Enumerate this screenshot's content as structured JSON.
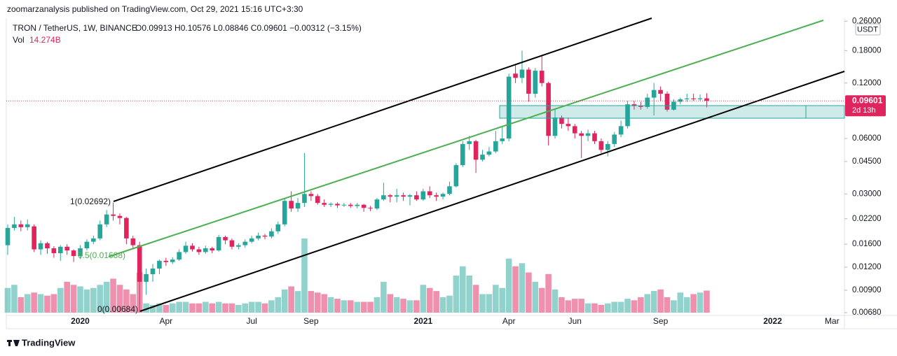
{
  "header": {
    "publisher": "zoomarzanalysis published on TradingView.com, Oct 29, 2021 15:16 UTC+3:30"
  },
  "footer": {
    "logo": "TradingView"
  },
  "chart_data": {
    "type": "candlestick",
    "title": "TRON / TetherUS, 1W, BINANCE",
    "ohlc_text": "O0.09913 H0.10576 L0.08846 C0.09601 −0.00312 (−3.15%)",
    "log_scale": true,
    "up_color": "#26a69a",
    "down_color": "#e0245e",
    "ylim": [
      0.0068,
      0.27
    ],
    "yticks": [
      {
        "value": 0.26,
        "label": "0.26000"
      },
      {
        "value": 0.18,
        "label": "0.18000"
      },
      {
        "value": 0.12,
        "label": "0.12000"
      },
      {
        "value": 0.06,
        "label": "0.06000"
      },
      {
        "value": 0.045,
        "label": "0.04500"
      },
      {
        "value": 0.03,
        "label": "0.03000"
      },
      {
        "value": 0.022,
        "label": "0.02200"
      },
      {
        "value": 0.016,
        "label": "0.01600"
      },
      {
        "value": 0.012,
        "label": "0.01200"
      },
      {
        "value": 0.009,
        "label": "0.00900"
      },
      {
        "value": 0.0068,
        "label": "0.00680"
      }
    ],
    "currency": "USDT",
    "price_label": "0.09601",
    "countdown": "2d 13h",
    "annotations": [
      "1(0.02692)",
      "0.5(0.01688)",
      "0(0.00684)"
    ],
    "categories": [
      null,
      null,
      null,
      null,
      null,
      null,
      null,
      null,
      null,
      null,
      null,
      "2020",
      null,
      null,
      null,
      null,
      null,
      null,
      null,
      null,
      null,
      null,
      null,
      null,
      "Apr",
      null,
      null,
      null,
      null,
      null,
      null,
      null,
      null,
      null,
      null,
      null,
      null,
      "Jul",
      null,
      null,
      null,
      null,
      null,
      null,
      null,
      null,
      "Sep",
      null,
      null,
      null,
      null,
      null,
      null,
      null,
      null,
      null,
      null,
      null,
      null,
      null,
      null,
      null,
      null,
      "2021",
      null,
      null,
      null,
      null,
      null,
      null,
      null,
      null,
      null,
      null,
      null,
      null,
      "Apr",
      null,
      null,
      null,
      null,
      null,
      null,
      null,
      null,
      null,
      "Jun",
      null,
      null,
      null,
      null,
      null,
      null,
      null,
      null,
      null,
      null,
      null,
      null,
      "Sep",
      null,
      null,
      null,
      null,
      null,
      null,
      null,
      null,
      null,
      null,
      null,
      null,
      null,
      null,
      null,
      null,
      "2022",
      null,
      null,
      null,
      null,
      null,
      null,
      null,
      null,
      "Mar"
    ],
    "open": [
      0.0158,
      0.0196,
      0.0205,
      0.0198,
      0.02,
      0.015,
      0.0162,
      0.0152,
      0.0143,
      0.0155,
      0.0148,
      0.0138,
      0.0152,
      0.0165,
      0.0172,
      0.0205,
      0.0232,
      0.0228,
      0.0222,
      0.0172,
      0.0158,
      0.01,
      0.011,
      0.0118,
      0.013,
      0.0128,
      0.0132,
      0.0145,
      0.0157,
      0.015,
      0.0145,
      0.0152,
      0.0148,
      0.0175,
      0.0168,
      0.0155,
      0.0158,
      0.0165,
      0.0172,
      0.0178,
      0.0176,
      0.0188,
      0.0205,
      0.0275,
      0.025,
      0.0268,
      0.03,
      0.0292,
      0.0268,
      0.0262,
      0.0265,
      0.026,
      0.0262,
      0.0258,
      0.0262,
      0.0252,
      0.025,
      0.028,
      0.0295,
      0.029,
      0.0295,
      0.029,
      0.0295,
      0.028,
      0.031,
      0.0295,
      0.029,
      0.03,
      0.033,
      0.043,
      0.056,
      0.058,
      0.046,
      0.049,
      0.051,
      0.058,
      0.06,
      0.135,
      0.128,
      0.142,
      0.105,
      0.14,
      0.12,
      0.062,
      0.078,
      0.072,
      0.07,
      0.064,
      0.062,
      0.064,
      0.058,
      0.052,
      0.056,
      0.063,
      0.07,
      0.092,
      0.09,
      0.089,
      0.1,
      0.11,
      0.105,
      0.086,
      0.095,
      0.098,
      0.099,
      0.098,
      0.09913,
      null,
      null,
      null,
      null,
      null,
      null,
      null,
      null,
      null,
      null,
      null,
      null,
      null,
      null,
      null,
      null,
      null,
      null,
      null
    ],
    "high": [
      0.0205,
      0.0225,
      0.0215,
      0.0218,
      0.0205,
      0.0168,
      0.0165,
      0.0156,
      0.0158,
      0.016,
      0.015,
      0.0158,
      0.017,
      0.0178,
      0.0215,
      0.0245,
      0.02692,
      0.0235,
      0.0225,
      0.0178,
      0.0165,
      0.0118,
      0.0125,
      0.0132,
      0.0135,
      0.0136,
      0.015,
      0.0165,
      0.0162,
      0.0155,
      0.0157,
      0.0155,
      0.018,
      0.0178,
      0.0172,
      0.0162,
      0.017,
      0.0178,
      0.0185,
      0.0182,
      0.0195,
      0.0212,
      0.0285,
      0.031,
      0.0285,
      0.05,
      0.031,
      0.03,
      0.028,
      0.027,
      0.027,
      0.0268,
      0.0268,
      0.0268,
      0.0265,
      0.0258,
      0.0285,
      0.0345,
      0.03,
      0.032,
      0.0305,
      0.03,
      0.031,
      0.032,
      0.033,
      0.0305,
      0.0305,
      0.035,
      0.044,
      0.058,
      0.062,
      0.059,
      0.052,
      0.054,
      0.066,
      0.07,
      0.135,
      0.15,
      0.18,
      0.146,
      0.145,
      0.17,
      0.122,
      0.086,
      0.08,
      0.078,
      0.072,
      0.066,
      0.067,
      0.066,
      0.06,
      0.058,
      0.065,
      0.075,
      0.096,
      0.096,
      0.095,
      0.105,
      0.12,
      0.115,
      0.108,
      0.098,
      0.1,
      0.105,
      0.105,
      0.104,
      0.10576,
      null,
      null,
      null,
      null,
      null,
      null,
      null,
      null,
      null,
      null,
      null,
      null,
      null,
      null,
      null,
      null,
      null,
      null,
      null
    ],
    "low": [
      0.014,
      0.019,
      0.0188,
      0.019,
      0.0145,
      0.014,
      0.0142,
      0.0135,
      0.013,
      0.014,
      0.0128,
      0.0133,
      0.0148,
      0.016,
      0.0168,
      0.0198,
      0.0215,
      0.0205,
      0.016,
      0.015,
      0.00684,
      0.0085,
      0.01,
      0.011,
      0.0122,
      0.0125,
      0.013,
      0.0142,
      0.0146,
      0.014,
      0.0142,
      0.0143,
      0.0146,
      0.016,
      0.015,
      0.015,
      0.0153,
      0.0162,
      0.0168,
      0.017,
      0.0172,
      0.0182,
      0.02,
      0.024,
      0.024,
      0.0255,
      0.0275,
      0.0262,
      0.0255,
      0.0255,
      0.0252,
      0.0255,
      0.0252,
      0.025,
      0.024,
      0.0242,
      0.0245,
      0.0275,
      0.027,
      0.027,
      0.0275,
      0.026,
      0.0275,
      0.0275,
      0.0285,
      0.0275,
      0.028,
      0.0295,
      0.0325,
      0.042,
      0.052,
      0.039,
      0.045,
      0.048,
      0.05,
      0.056,
      0.058,
      0.12,
      0.12,
      0.095,
      0.1,
      0.115,
      0.055,
      0.06,
      0.068,
      0.066,
      0.06,
      0.047,
      0.058,
      0.056,
      0.05,
      0.048,
      0.054,
      0.061,
      0.068,
      0.086,
      0.086,
      0.087,
      0.08,
      0.096,
      0.084,
      0.085,
      0.092,
      0.095,
      0.096,
      0.096,
      0.08846,
      null,
      null,
      null,
      null,
      null,
      null,
      null,
      null,
      null,
      null,
      null,
      null,
      null,
      null,
      null,
      null,
      null,
      null,
      null
    ],
    "close": [
      0.0196,
      0.0205,
      0.0198,
      0.0205,
      0.015,
      0.0162,
      0.0152,
      0.0143,
      0.0155,
      0.0148,
      0.0138,
      0.0152,
      0.0165,
      0.0172,
      0.0205,
      0.0232,
      0.0228,
      0.0222,
      0.0172,
      0.0158,
      0.01,
      0.011,
      0.0118,
      0.013,
      0.0128,
      0.0132,
      0.0145,
      0.0157,
      0.015,
      0.0145,
      0.0152,
      0.0148,
      0.0175,
      0.0168,
      0.0155,
      0.0158,
      0.0165,
      0.0172,
      0.0178,
      0.0176,
      0.0188,
      0.0205,
      0.0275,
      0.025,
      0.0268,
      0.03,
      0.0292,
      0.0268,
      0.0262,
      0.0265,
      0.026,
      0.0262,
      0.0258,
      0.0262,
      0.0252,
      0.025,
      0.028,
      0.0295,
      0.029,
      0.0295,
      0.029,
      0.0295,
      0.028,
      0.031,
      0.0295,
      0.029,
      0.03,
      0.033,
      0.043,
      0.056,
      0.058,
      0.046,
      0.049,
      0.051,
      0.058,
      0.06,
      0.13,
      0.128,
      0.142,
      0.105,
      0.14,
      0.12,
      0.062,
      0.078,
      0.072,
      0.07,
      0.064,
      0.062,
      0.064,
      0.058,
      0.052,
      0.056,
      0.063,
      0.07,
      0.092,
      0.09,
      0.089,
      0.1,
      0.11,
      0.105,
      0.086,
      0.095,
      0.098,
      0.099,
      0.098,
      0.0991,
      0.09601,
      null,
      null,
      null,
      null,
      null,
      null,
      null,
      null,
      null,
      null,
      null,
      null,
      null,
      null,
      null,
      null,
      null,
      null,
      null
    ],
    "volume": {
      "name": "Vol",
      "value_label": "14.274B",
      "values": [
        16,
        18,
        10,
        12,
        13,
        12,
        11,
        12,
        16,
        20,
        18,
        17,
        15,
        16,
        18,
        20,
        22,
        18,
        15,
        12,
        26,
        6,
        5,
        6,
        5,
        6,
        7,
        7,
        6,
        6,
        7,
        6,
        7,
        6,
        6,
        5,
        6,
        7,
        7,
        6,
        8,
        10,
        15,
        17,
        14,
        48,
        14,
        13,
        12,
        10,
        9,
        8,
        8,
        7,
        7,
        7,
        10,
        20,
        12,
        10,
        9,
        8,
        8,
        18,
        16,
        14,
        10,
        11,
        24,
        30,
        24,
        18,
        12,
        12,
        18,
        16,
        35,
        30,
        32,
        26,
        20,
        16,
        25,
        15,
        10,
        8,
        9,
        9,
        6,
        6,
        5,
        6,
        7,
        7,
        9,
        8,
        10,
        12,
        14,
        15,
        10,
        8,
        13,
        10,
        12,
        13,
        14.274,
        null,
        null,
        null,
        null,
        null,
        null,
        null,
        null,
        null,
        null,
        null,
        null,
        null,
        null,
        null,
        null,
        null,
        null,
        null
      ]
    }
  }
}
